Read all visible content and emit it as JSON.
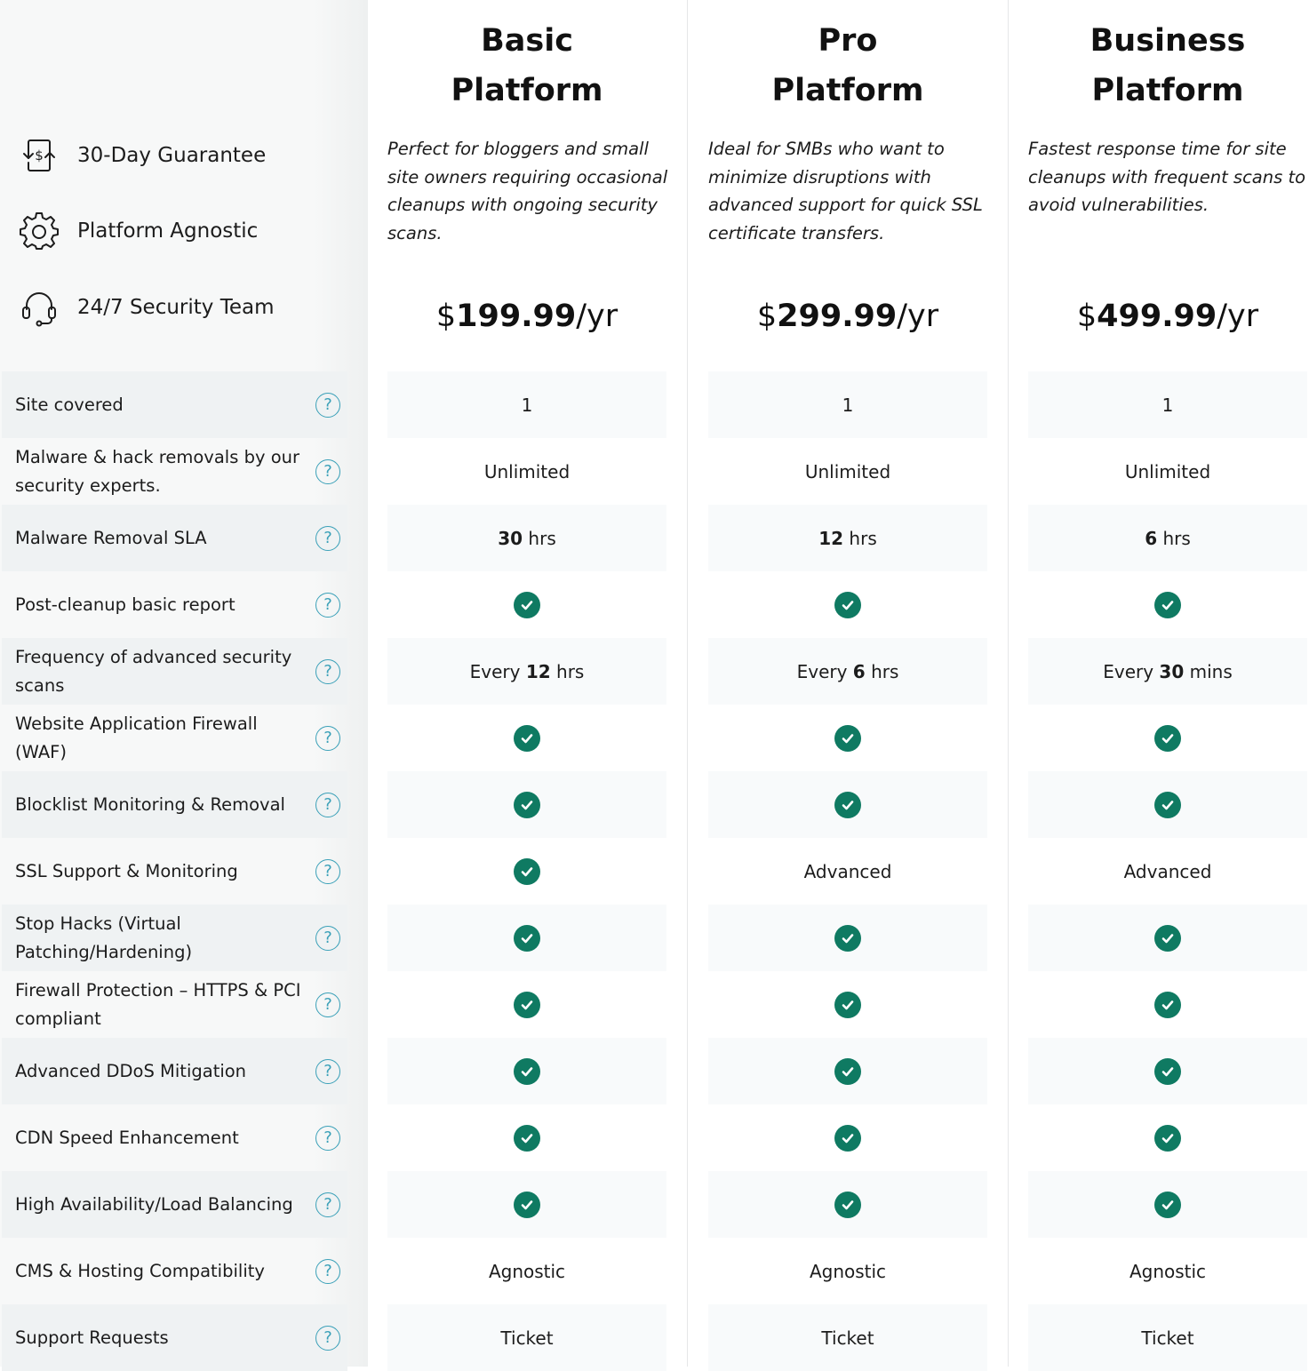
{
  "guarantees": [
    {
      "label": "30-Day Guarantee",
      "icon": "money-back-icon"
    },
    {
      "label": "Platform Agnostic",
      "icon": "gear-icon"
    },
    {
      "label": "24/7 Security Team",
      "icon": "headset-icon"
    }
  ],
  "features": [
    "Site covered",
    "Malware & hack removals by our security experts.",
    "Malware Removal SLA",
    "Post-cleanup basic report",
    "Frequency of advanced security scans",
    "Website Application Firewall (WAF)",
    "Blocklist Monitoring & Removal",
    "SSL Support & Monitoring",
    "Stop Hacks (Virtual Patching/Hardening)",
    "Firewall Protection – HTTPS & PCI compliant",
    "Advanced DDoS Mitigation",
    "CDN Speed Enhancement",
    "High Availability/Load Balancing",
    "CMS & Hosting Compatibility",
    "Support Requests"
  ],
  "help_symbol": "?",
  "colors": {
    "check": "#0f7a62",
    "help": "#3aa0b8"
  },
  "plans": [
    {
      "title_line1": "Basic",
      "title_line2": "Platform",
      "description": "Perfect for bloggers and small site owners requiring occasional cleanups with ongoing security scans.",
      "price_currency": "$",
      "price_amount": "199.99",
      "price_period": "/yr",
      "values": [
        {
          "text": "1"
        },
        {
          "text": "Unlimited"
        },
        {
          "bold": "30",
          "suffix": " hrs"
        },
        {
          "check": true
        },
        {
          "prefix": "Every ",
          "bold": "12",
          "suffix": " hrs"
        },
        {
          "check": true
        },
        {
          "check": true
        },
        {
          "check": true
        },
        {
          "check": true
        },
        {
          "check": true
        },
        {
          "check": true
        },
        {
          "check": true
        },
        {
          "check": true
        },
        {
          "text": "Agnostic"
        },
        {
          "text": "Ticket"
        }
      ]
    },
    {
      "title_line1": "Pro",
      "title_line2": "Platform",
      "description": "Ideal for SMBs who want to minimize disruptions with advanced support for quick SSL certificate transfers.",
      "price_currency": "$",
      "price_amount": "299.99",
      "price_period": "/yr",
      "values": [
        {
          "text": "1"
        },
        {
          "text": "Unlimited"
        },
        {
          "bold": "12",
          "suffix": " hrs"
        },
        {
          "check": true
        },
        {
          "prefix": "Every ",
          "bold": "6",
          "suffix": " hrs"
        },
        {
          "check": true
        },
        {
          "check": true
        },
        {
          "text": "Advanced"
        },
        {
          "check": true
        },
        {
          "check": true
        },
        {
          "check": true
        },
        {
          "check": true
        },
        {
          "check": true
        },
        {
          "text": "Agnostic"
        },
        {
          "text": "Ticket"
        }
      ]
    },
    {
      "title_line1": "Business",
      "title_line2": "Platform",
      "description": "Fastest response time for site cleanups with frequent scans to avoid vulnerabilities.",
      "price_currency": "$",
      "price_amount": "499.99",
      "price_period": "/yr",
      "values": [
        {
          "text": "1"
        },
        {
          "text": "Unlimited"
        },
        {
          "bold": "6",
          "suffix": " hrs"
        },
        {
          "check": true
        },
        {
          "prefix": "Every ",
          "bold": "30",
          "suffix": " mins"
        },
        {
          "check": true
        },
        {
          "check": true
        },
        {
          "text": "Advanced"
        },
        {
          "check": true
        },
        {
          "check": true
        },
        {
          "check": true
        },
        {
          "check": true
        },
        {
          "check": true
        },
        {
          "text": "Agnostic"
        },
        {
          "text": "Ticket"
        }
      ]
    }
  ]
}
